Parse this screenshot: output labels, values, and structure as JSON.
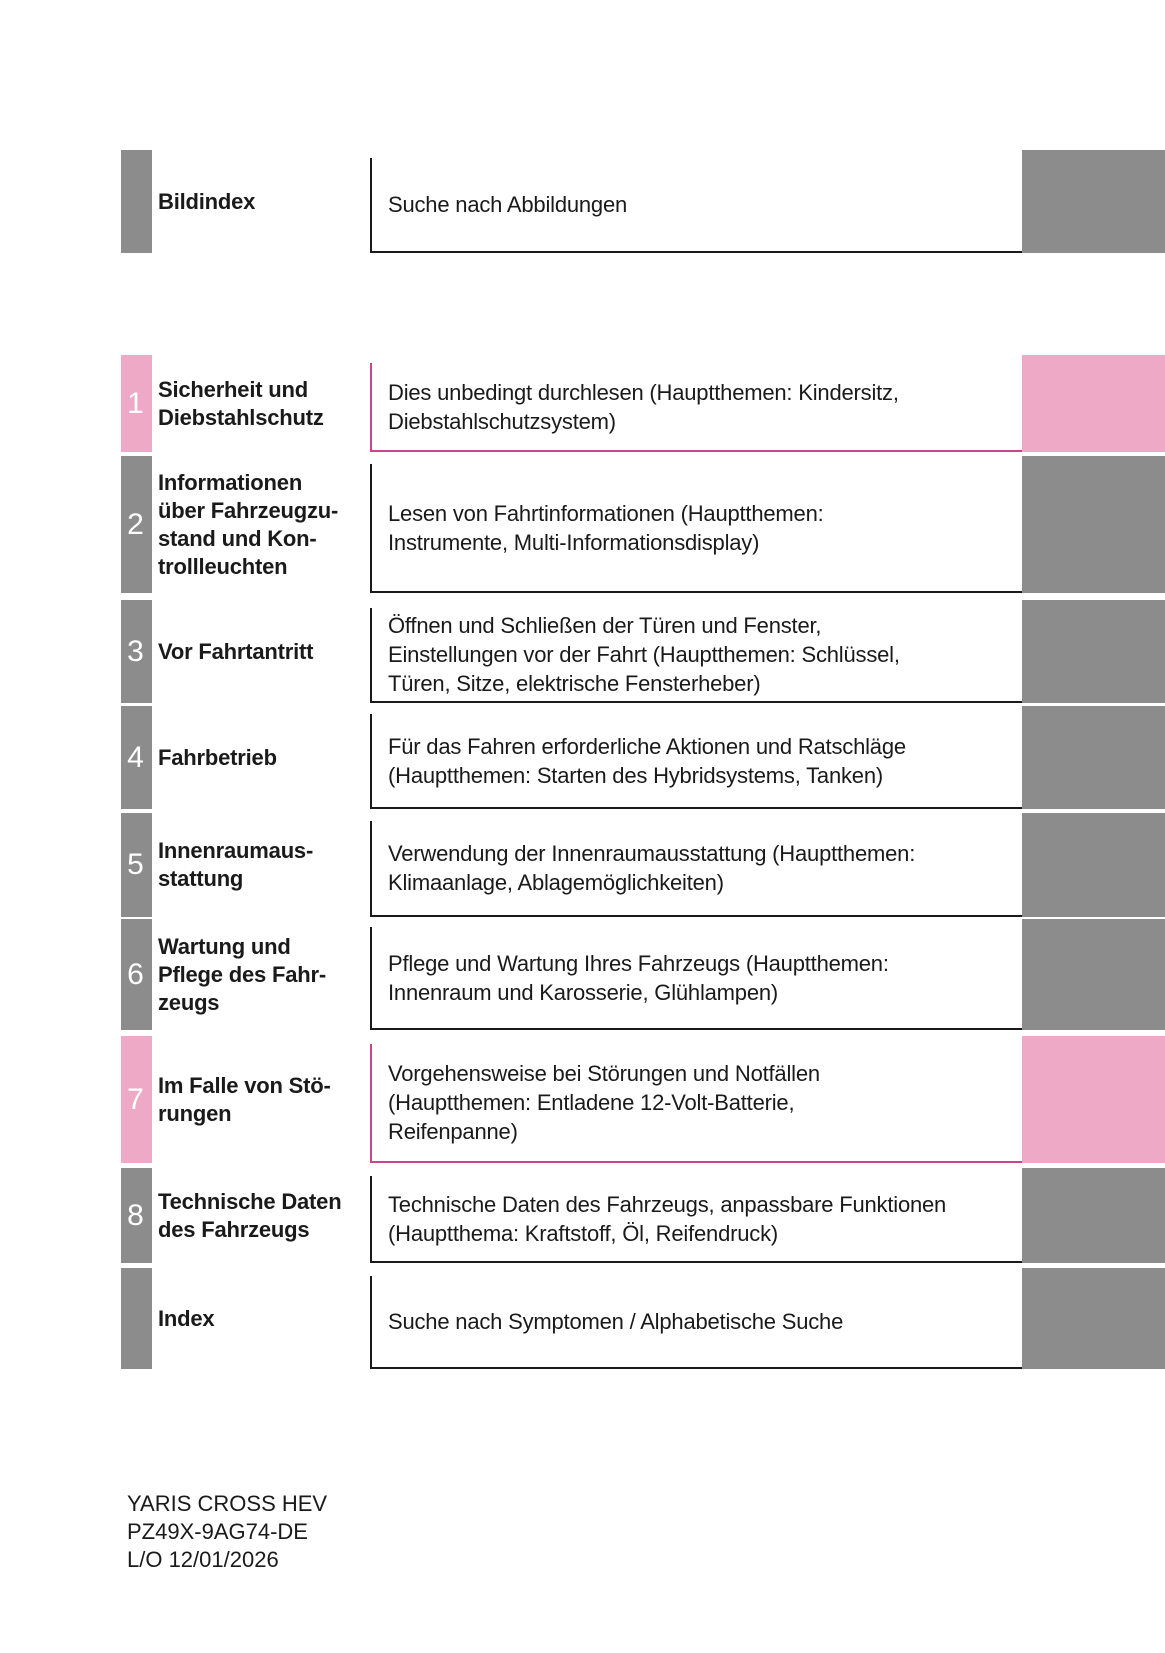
{
  "colors": {
    "tab_gray": "#8c8c8c",
    "tab_pink": "#eda9c5",
    "rule_dark": "#1a1a1a",
    "rule_pink": "#c6478d",
    "ink": "#1a1a1a",
    "number_text": "#ffffff",
    "background": "#ffffff"
  },
  "toc": {
    "rows": [
      {
        "number": "",
        "accent": "gray",
        "title": "Bildindex",
        "description": "Suche nach Abbildungen"
      },
      {
        "number": "1",
        "accent": "pink",
        "title": "Sicherheit und\nDiebstahlschutz",
        "description": "Dies unbedingt durchlesen (Hauptthemen: Kindersitz,\nDiebstahlschutzsystem)"
      },
      {
        "number": "2",
        "accent": "gray",
        "title": "Informationen\nüber Fahrzeugzu-\nstand und Kon-\ntrollleuchten",
        "description": "Lesen von Fahrtinformationen (Hauptthemen:\nInstrumente, Multi-Informationsdisplay)"
      },
      {
        "number": "3",
        "accent": "gray",
        "title": "Vor Fahrtantritt",
        "description": "Öffnen und Schließen der Türen und Fenster,\nEinstellungen vor der Fahrt (Hauptthemen: Schlüssel,\nTüren, Sitze, elektrische Fensterheber)"
      },
      {
        "number": "4",
        "accent": "gray",
        "title": "Fahrbetrieb",
        "description": "Für das Fahren erforderliche Aktionen und Ratschläge\n(Hauptthemen: Starten des Hybridsystems, Tanken)"
      },
      {
        "number": "5",
        "accent": "gray",
        "title": "Innenraumaus-\nstattung",
        "description": "Verwendung der Innenraumausstattung (Hauptthemen:\nKlimaanlage, Ablagemöglichkeiten)"
      },
      {
        "number": "6",
        "accent": "gray",
        "title": "Wartung und\nPflege des Fahr-\nzeugs",
        "description": "Pflege und Wartung Ihres Fahrzeugs (Hauptthemen:\nInnenraum und Karosserie, Glühlampen)"
      },
      {
        "number": "7",
        "accent": "pink",
        "title": "Im Falle von Stö-\nrungen",
        "description": "Vorgehensweise bei Störungen und Notfällen\n(Hauptthemen: Entladene 12-Volt-Batterie,\nReifenpanne)"
      },
      {
        "number": "8",
        "accent": "gray",
        "title": "Technische Daten\ndes Fahrzeugs",
        "description": "Technische Daten des Fahrzeugs, anpassbare Funktionen\n(Hauptthema: Kraftstoff, Öl, Reifendruck)"
      },
      {
        "number": "",
        "accent": "gray",
        "title": "Index",
        "description": "Suche nach Symptomen / Alphabetische Suche"
      }
    ]
  },
  "footer": {
    "lines": [
      "YARIS CROSS HEV",
      "PZ49X-9AG74-DE",
      "L/O 12/01/2026"
    ]
  }
}
